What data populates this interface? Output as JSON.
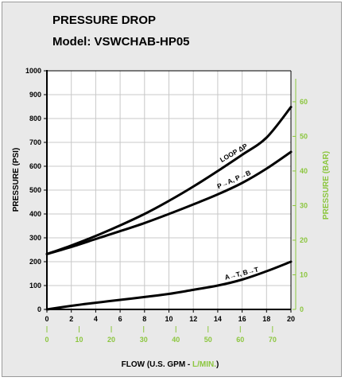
{
  "chart_data": {
    "type": "line",
    "title": "PRESSURE DROP",
    "subtitle": "Model:  VSWCHAB-HP05",
    "ylabel": "PRESSURE (PSI)",
    "ylabel_right": "PRESSURE (BAR)",
    "xlabel_prefix": "FLOW (U.S. GPM - ",
    "xlabel_unit2": "L/MIN.",
    "xlabel_suffix": ")",
    "xlim": [
      0,
      20
    ],
    "ylim": [
      0,
      1000
    ],
    "grid": true,
    "x_ticks": [
      "0",
      "2",
      "4",
      "6",
      "8",
      "10",
      "12",
      "14",
      "16",
      "18",
      "20"
    ],
    "y_ticks": [
      "0",
      "100",
      "200",
      "300",
      "400",
      "500",
      "600",
      "700",
      "800",
      "900",
      "1000"
    ],
    "x2_ticks": [
      {
        "label": "0",
        "gpm": 0
      },
      {
        "label": "10",
        "gpm": 2.64
      },
      {
        "label": "20",
        "gpm": 5.28
      },
      {
        "label": "30",
        "gpm": 7.93
      },
      {
        "label": "40",
        "gpm": 10.57
      },
      {
        "label": "50",
        "gpm": 13.21
      },
      {
        "label": "60",
        "gpm": 15.85
      },
      {
        "label": "70",
        "gpm": 18.49
      }
    ],
    "y2_ticks": [
      {
        "label": "0",
        "psi": 0
      },
      {
        "label": "10",
        "psi": 145.0
      },
      {
        "label": "20",
        "psi": 290.1
      },
      {
        "label": "30",
        "psi": 435.1
      },
      {
        "label": "40",
        "psi": 580.2
      },
      {
        "label": "50",
        "psi": 725.2
      },
      {
        "label": "60",
        "psi": 870.2
      }
    ],
    "series": [
      {
        "name": "LOOP ΔP",
        "x": [
          0,
          2,
          4,
          6,
          8,
          10,
          12,
          14,
          16,
          18,
          20
        ],
        "values": [
          232,
          268,
          308,
          352,
          400,
          455,
          515,
          580,
          648,
          720,
          848
        ]
      },
      {
        "name": "P→A, P→B",
        "x": [
          0,
          2,
          4,
          6,
          8,
          10,
          12,
          14,
          16,
          18,
          20
        ],
        "values": [
          232,
          262,
          295,
          328,
          362,
          400,
          440,
          482,
          530,
          590,
          660
        ]
      },
      {
        "name": "A→T, B→T",
        "x": [
          0,
          2,
          4,
          6,
          8,
          10,
          12,
          14,
          16,
          18,
          20
        ],
        "values": [
          0,
          15,
          28,
          40,
          52,
          65,
          82,
          100,
          125,
          160,
          200
        ]
      }
    ]
  }
}
